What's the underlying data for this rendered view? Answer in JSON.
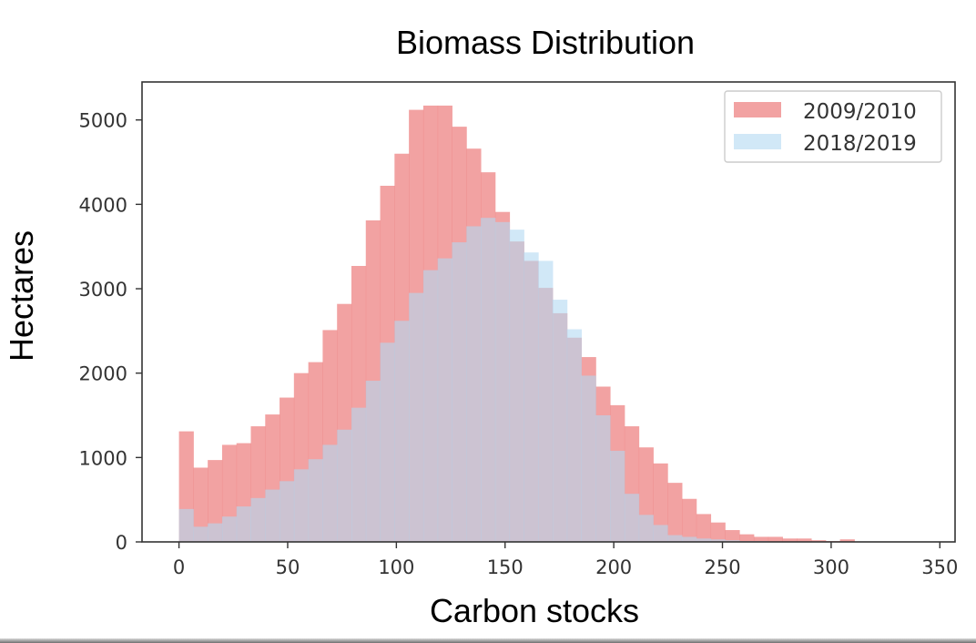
{
  "chart_data": {
    "type": "histogram",
    "title": "Biomass Distribution",
    "xlabel": "Carbon stocks",
    "ylabel": "Hectares",
    "xlim": [
      -17,
      357
    ],
    "ylim": [
      0,
      5450
    ],
    "xticks": [
      0,
      50,
      100,
      150,
      200,
      250,
      300,
      350
    ],
    "yticks": [
      0,
      1000,
      2000,
      3000,
      4000,
      5000
    ],
    "grid": false,
    "legend_position": "top-right",
    "bin_start": 0,
    "bin_width": 6.61,
    "series": [
      {
        "name": "2009/2010",
        "color": "#ef8b8b",
        "opacity": 0.8,
        "values": [
          1310,
          880,
          970,
          1150,
          1170,
          1370,
          1510,
          1710,
          2000,
          2130,
          2510,
          2820,
          3270,
          3810,
          4220,
          4600,
          5120,
          5170,
          5170,
          4920,
          4660,
          4380,
          3910,
          3560,
          3330,
          3010,
          2710,
          2420,
          2190,
          1840,
          1620,
          1370,
          1120,
          930,
          700,
          510,
          330,
          230,
          140,
          90,
          60,
          60,
          40,
          40,
          20,
          10,
          30,
          0,
          0,
          0,
          0,
          0,
          0
        ]
      },
      {
        "name": "2018/2019",
        "color": "#b3d9f2",
        "opacity": 0.6,
        "values": [
          390,
          180,
          220,
          300,
          420,
          520,
          620,
          720,
          860,
          980,
          1150,
          1330,
          1590,
          1910,
          2360,
          2620,
          2950,
          3220,
          3360,
          3550,
          3740,
          3840,
          3790,
          3700,
          3430,
          3330,
          2870,
          2520,
          1970,
          1500,
          1080,
          570,
          320,
          200,
          80,
          60,
          40,
          30,
          20,
          10,
          10,
          0,
          0,
          0,
          0,
          0,
          0,
          0,
          0,
          0,
          0,
          0,
          0
        ]
      }
    ]
  }
}
